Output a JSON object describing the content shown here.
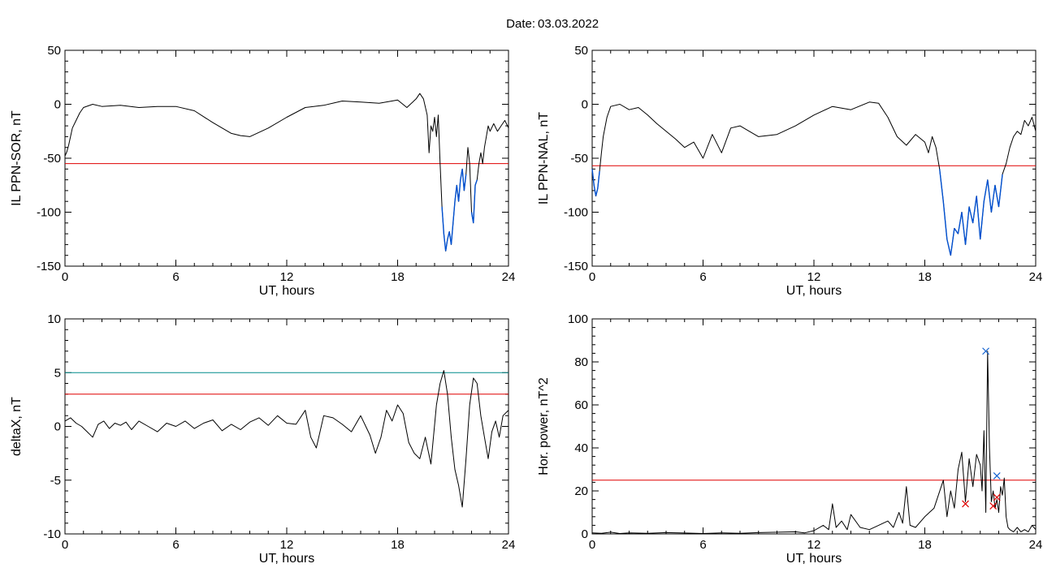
{
  "date_label": "Date:",
  "date_value": "03.03.2022",
  "chart_data": [
    {
      "type": "line",
      "ylabel": "IL PPN-SOR, nT",
      "xlabel": "UT, hours",
      "xlim": [
        0,
        24
      ],
      "ylim": [
        -150,
        50
      ],
      "xticks": [
        0,
        6,
        12,
        18,
        24
      ],
      "yticks": [
        -150,
        -100,
        -50,
        0,
        50
      ],
      "series_color": "#000000",
      "highlight_color": "#0050d0",
      "highlight_below": -55,
      "thresholds": [
        {
          "value": -55,
          "color": "#e00000"
        }
      ],
      "x": [
        0,
        0.1,
        0.2,
        0.3,
        0.4,
        0.6,
        0.8,
        1.0,
        1.5,
        2,
        3,
        4,
        5,
        6,
        7,
        8,
        9,
        9.5,
        10,
        11,
        12,
        13,
        14,
        15,
        16,
        17,
        18,
        18.5,
        19,
        19.2,
        19.4,
        19.6,
        19.7,
        19.8,
        19.9,
        20.0,
        20.1,
        20.2,
        20.3,
        20.4,
        20.5,
        20.6,
        20.7,
        20.8,
        20.9,
        21.0,
        21.1,
        21.2,
        21.3,
        21.4,
        21.5,
        21.6,
        21.7,
        21.8,
        21.9,
        22.0,
        22.1,
        22.2,
        22.3,
        22.4,
        22.5,
        22.6,
        22.7,
        22.8,
        22.9,
        23.0,
        23.2,
        23.4,
        23.6,
        23.8,
        24.0
      ],
      "y": [
        -48,
        -44,
        -38,
        -30,
        -22,
        -15,
        -8,
        -3,
        0,
        -2,
        -1,
        -3,
        -2,
        -2,
        -6,
        -17,
        -27,
        -29,
        -30,
        -22,
        -12,
        -3,
        -1,
        3,
        2,
        1,
        4,
        -3,
        5,
        10,
        5,
        -10,
        -45,
        -20,
        -25,
        -12,
        -30,
        -10,
        -55,
        -95,
        -120,
        -136,
        -125,
        -118,
        -130,
        -110,
        -90,
        -75,
        -90,
        -70,
        -60,
        -80,
        -65,
        -40,
        -55,
        -100,
        -110,
        -75,
        -70,
        -55,
        -45,
        -55,
        -40,
        -30,
        -20,
        -25,
        -18,
        -25,
        -20,
        -15,
        -22
      ]
    },
    {
      "type": "line",
      "ylabel": "IL PPN-NAL, nT",
      "xlabel": "UT, hours",
      "xlim": [
        0,
        24
      ],
      "ylim": [
        -150,
        50
      ],
      "xticks": [
        0,
        6,
        12,
        18,
        24
      ],
      "yticks": [
        -150,
        -100,
        -50,
        0,
        50
      ],
      "series_color": "#000000",
      "highlight_color": "#0050d0",
      "highlight_below": -57,
      "thresholds": [
        {
          "value": -57,
          "color": "#e00000"
        }
      ],
      "x": [
        0,
        0.1,
        0.2,
        0.3,
        0.4,
        0.5,
        0.6,
        0.8,
        1.0,
        1.5,
        2,
        2.5,
        3,
        3.5,
        4,
        4.5,
        5,
        5.5,
        6,
        6.5,
        7,
        7.5,
        8,
        8.5,
        9,
        10,
        11,
        12,
        13,
        14,
        15,
        15.5,
        16,
        16.5,
        17,
        17.5,
        18,
        18.2,
        18.4,
        18.6,
        18.8,
        19.0,
        19.2,
        19.4,
        19.6,
        19.8,
        20.0,
        20.2,
        20.4,
        20.6,
        20.8,
        21.0,
        21.2,
        21.4,
        21.6,
        21.8,
        22.0,
        22.2,
        22.4,
        22.6,
        22.8,
        23.0,
        23.2,
        23.4,
        23.6,
        23.8,
        24.0
      ],
      "y": [
        -60,
        -75,
        -85,
        -78,
        -62,
        -45,
        -30,
        -12,
        -2,
        0,
        -5,
        -3,
        -10,
        -18,
        -25,
        -32,
        -40,
        -35,
        -50,
        -28,
        -45,
        -22,
        -20,
        -25,
        -30,
        -28,
        -20,
        -10,
        -2,
        -5,
        2,
        1,
        -12,
        -30,
        -38,
        -28,
        -35,
        -45,
        -30,
        -40,
        -60,
        -90,
        -125,
        -140,
        -115,
        -120,
        -100,
        -130,
        -95,
        -110,
        -85,
        -125,
        -90,
        -70,
        -100,
        -75,
        -95,
        -65,
        -55,
        -40,
        -30,
        -25,
        -28,
        -15,
        -20,
        -12,
        -25
      ]
    },
    {
      "type": "line",
      "ylabel": "deltaX, nT",
      "xlabel": "UT, hours",
      "xlim": [
        0,
        24
      ],
      "ylim": [
        -10,
        10
      ],
      "xticks": [
        0,
        6,
        12,
        18,
        24
      ],
      "yticks": [
        -10,
        -5,
        0,
        5,
        10
      ],
      "series_color": "#000000",
      "thresholds": [
        {
          "value": 5,
          "color": "#008b8b"
        },
        {
          "value": 3,
          "color": "#e00000"
        }
      ],
      "x": [
        0,
        0.3,
        0.6,
        0.9,
        1.2,
        1.5,
        1.8,
        2.1,
        2.4,
        2.7,
        3.0,
        3.3,
        3.6,
        4.0,
        4.5,
        5.0,
        5.5,
        6.0,
        6.5,
        7.0,
        7.5,
        8.0,
        8.5,
        9.0,
        9.5,
        10.0,
        10.5,
        11.0,
        11.5,
        12.0,
        12.5,
        13.0,
        13.3,
        13.6,
        14.0,
        14.5,
        15.0,
        15.5,
        16.0,
        16.5,
        16.8,
        17.1,
        17.4,
        17.7,
        18.0,
        18.3,
        18.6,
        18.9,
        19.2,
        19.5,
        19.8,
        20.1,
        20.3,
        20.5,
        20.7,
        20.9,
        21.1,
        21.3,
        21.5,
        21.7,
        21.9,
        22.1,
        22.3,
        22.5,
        22.7,
        22.9,
        23.1,
        23.3,
        23.5,
        23.7,
        24.0
      ],
      "y": [
        0.5,
        0.8,
        0.3,
        0,
        -0.5,
        -1,
        0.2,
        0.5,
        -0.2,
        0.3,
        0.1,
        0.4,
        -0.3,
        0.5,
        0,
        -0.5,
        0.3,
        0,
        0.5,
        -0.2,
        0.3,
        0.6,
        -0.4,
        0.2,
        -0.3,
        0.4,
        0.8,
        0.1,
        1.0,
        0.3,
        0.2,
        1.5,
        -1.0,
        -2.0,
        1.0,
        0.8,
        0.2,
        -0.5,
        1.0,
        -0.8,
        -2.5,
        -1.0,
        1.5,
        0.5,
        2.0,
        1.2,
        -1.5,
        -2.5,
        -3.0,
        -1.0,
        -3.5,
        2.0,
        4.0,
        5.2,
        3.0,
        -1.0,
        -4.0,
        -5.5,
        -7.5,
        -3.0,
        2.0,
        4.5,
        4.0,
        1.0,
        -1.0,
        -3.0,
        -0.5,
        0.5,
        -1.0,
        1.0,
        1.5
      ]
    },
    {
      "type": "line",
      "ylabel": "Hor. power, nT^2",
      "xlabel": "UT, hours",
      "xlim": [
        0,
        24
      ],
      "ylim": [
        0,
        100
      ],
      "xticks": [
        0,
        6,
        12,
        18,
        24
      ],
      "yticks": [
        0,
        20,
        40,
        60,
        80,
        100
      ],
      "series_color": "#000000",
      "thresholds": [
        {
          "value": 25,
          "color": "#e00000"
        }
      ],
      "x": [
        0,
        0.5,
        1,
        1.5,
        2,
        3,
        4,
        5,
        6,
        7,
        8,
        9,
        10,
        11,
        11.5,
        12,
        12.5,
        12.8,
        13.0,
        13.2,
        13.5,
        13.8,
        14.0,
        14.5,
        15,
        15.5,
        16,
        16.3,
        16.6,
        16.8,
        17.0,
        17.2,
        17.5,
        18,
        18.5,
        19.0,
        19.2,
        19.4,
        19.6,
        19.8,
        20.0,
        20.2,
        20.4,
        20.6,
        20.8,
        21.0,
        21.1,
        21.2,
        21.3,
        21.4,
        21.5,
        21.6,
        21.7,
        21.8,
        21.9,
        22.0,
        22.1,
        22.2,
        22.3,
        22.4,
        22.5,
        22.6,
        22.8,
        23.0,
        23.2,
        23.4,
        23.6,
        23.8,
        24.0
      ],
      "y": [
        0.5,
        0.3,
        0.8,
        0.2,
        0.5,
        0.3,
        0.6,
        0.4,
        0.2,
        0.5,
        0.3,
        0.6,
        0.8,
        1.0,
        0.5,
        1.5,
        4,
        2,
        14,
        3,
        6,
        2,
        9,
        3,
        2,
        4,
        6,
        3,
        10,
        5,
        22,
        4,
        3,
        8,
        12,
        25,
        8,
        20,
        12,
        30,
        38,
        15,
        35,
        22,
        37,
        32,
        20,
        48,
        10,
        85,
        40,
        15,
        20,
        12,
        16,
        10,
        22,
        18,
        26,
        8,
        3,
        2,
        1,
        3,
        1,
        2,
        1,
        4,
        2
      ],
      "markers": [
        {
          "x": 20.2,
          "y": 14,
          "color": "#e00000"
        },
        {
          "x": 21.3,
          "y": 85,
          "color": "#1060d0"
        },
        {
          "x": 21.9,
          "y": 27,
          "color": "#1060d0"
        },
        {
          "x": 21.7,
          "y": 13,
          "color": "#e00000"
        },
        {
          "x": 21.9,
          "y": 17,
          "color": "#e00000"
        }
      ]
    }
  ]
}
